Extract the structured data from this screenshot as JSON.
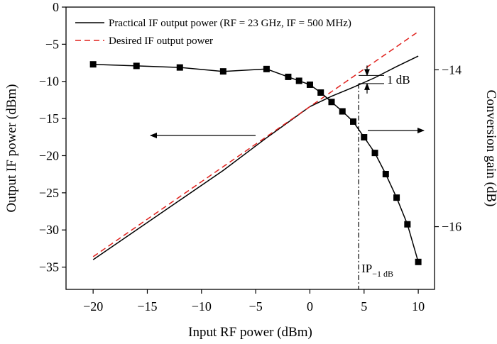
{
  "chart_data": {
    "type": "line",
    "xlabel": "Input RF power (dBm)",
    "ylabel": "Output IF power (dBm)",
    "y2label": "Conversion gain (dB)",
    "xlim": [
      -22.5,
      11.5
    ],
    "ylim": [
      -38,
      0
    ],
    "y2lim": [
      -16.8,
      -13.2
    ],
    "x_ticks": [
      -20,
      -15,
      -10,
      -5,
      0,
      5,
      10
    ],
    "y_ticks": [
      0,
      -5,
      -10,
      -15,
      -20,
      -25,
      -30,
      -35
    ],
    "y2_ticks": [
      -14,
      -16
    ],
    "legend_position": "top",
    "series": [
      {
        "name": "Practical IF output power (RF = 23 GHz, IF = 500 MHz)",
        "axis": "left",
        "color": "#000000",
        "style": "solid",
        "points": [
          [
            -20,
            -34.0
          ],
          [
            -16,
            -30.0
          ],
          [
            -12,
            -26.0
          ],
          [
            -8,
            -22.0
          ],
          [
            -4,
            -17.6
          ],
          [
            0,
            -13.4
          ],
          [
            2,
            -12.0
          ],
          [
            4,
            -10.8
          ],
          [
            6,
            -9.5
          ],
          [
            8,
            -8.0
          ],
          [
            10,
            -6.6
          ]
        ]
      },
      {
        "name": "Desired IF output power",
        "axis": "left",
        "color": "#e0201c",
        "style": "dashed",
        "points": [
          [
            -20,
            -33.6
          ],
          [
            10,
            -3.3
          ]
        ]
      },
      {
        "name": "Conversion gain",
        "axis": "right",
        "color": "#000000",
        "style": "solid-markers",
        "points": [
          [
            -20,
            -13.93
          ],
          [
            -16,
            -13.95
          ],
          [
            -12,
            -13.97
          ],
          [
            -8,
            -14.02
          ],
          [
            -4,
            -13.99
          ],
          [
            -2,
            -14.09
          ],
          [
            -1,
            -14.14
          ],
          [
            0,
            -14.19
          ],
          [
            1,
            -14.29
          ],
          [
            2,
            -14.41
          ],
          [
            3,
            -14.53
          ],
          [
            4,
            -14.66
          ],
          [
            5,
            -14.86
          ],
          [
            6,
            -15.06
          ],
          [
            7,
            -15.33
          ],
          [
            8,
            -15.63
          ],
          [
            9,
            -15.97
          ],
          [
            10,
            -16.45
          ]
        ]
      }
    ],
    "annotations": {
      "compression_label": "1 dB",
      "ip_main": "IP",
      "ip_sub": "−1 dB",
      "ip_x": 4.5,
      "ip_upper_y": -9.2,
      "ip_lower_y": -10.3
    }
  }
}
